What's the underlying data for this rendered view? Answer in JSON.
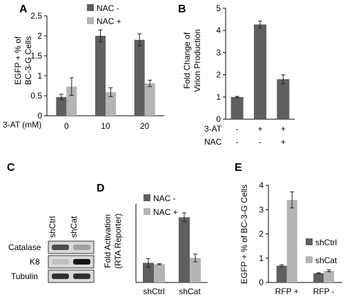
{
  "panels": {
    "A": {
      "label": "A"
    },
    "B": {
      "label": "B"
    },
    "C": {
      "label": "C"
    },
    "D": {
      "label": "D"
    },
    "E": {
      "label": "E"
    }
  },
  "colors": {
    "dark": "#5f5f5f",
    "light": "#b4b4b4",
    "axis": "#000000"
  },
  "chart_data": [
    {
      "id": "A",
      "type": "bar",
      "ylabel_lines": [
        "EGFP + % of",
        "BC-3-G Cells"
      ],
      "xlabel": "3-AT (mM)",
      "categories": [
        "0",
        "10",
        "20"
      ],
      "ylim": [
        0,
        2.5
      ],
      "yticks": [
        "0",
        "0.5",
        "1",
        "1.5",
        "2",
        "2.5"
      ],
      "legend_position": "top-right",
      "series": [
        {
          "name": "NAC -",
          "color": "#5f5f5f",
          "values": [
            0.47,
            2.0,
            1.9
          ],
          "errors": [
            0.07,
            0.15,
            0.15
          ]
        },
        {
          "name": "NAC +",
          "color": "#b4b4b4",
          "values": [
            0.73,
            0.59,
            0.81
          ],
          "errors": [
            0.22,
            0.11,
            0.08
          ]
        }
      ]
    },
    {
      "id": "B",
      "type": "bar",
      "ylabel_lines": [
        "Fold Change of",
        "Virion Production"
      ],
      "ylim": [
        0,
        5
      ],
      "yticks": [
        "0",
        "1",
        "2",
        "3",
        "4",
        "5"
      ],
      "row_labels": [
        "3-AT",
        "NAC"
      ],
      "condition_rows": [
        [
          "-",
          "+",
          "+"
        ],
        [
          "-",
          "-",
          "+"
        ]
      ],
      "series": [
        {
          "color": "#5f5f5f",
          "values": [
            1.0,
            4.27,
            1.8
          ],
          "errors": [
            0.03,
            0.15,
            0.2
          ]
        }
      ]
    },
    {
      "id": "D",
      "type": "bar",
      "ylabel_lines": [
        "Fold Activation",
        "(RTA Reporter)"
      ],
      "categories": [
        "shCtrl",
        "shCat"
      ],
      "ylim": [
        0,
        4
      ],
      "legend_position": "top",
      "series": [
        {
          "name": "NAC -",
          "color": "#5f5f5f",
          "values": [
            1.0,
            3.32
          ],
          "errors": [
            0.22,
            0.22
          ]
        },
        {
          "name": "NAC +",
          "color": "#b4b4b4",
          "values": [
            0.93,
            1.25
          ],
          "errors": [
            0.03,
            0.2
          ]
        }
      ]
    },
    {
      "id": "E",
      "type": "bar",
      "ylabel_lines": [
        "EGFP + % of BC-3-G Cells"
      ],
      "categories": [
        "RFP +",
        "RFP -"
      ],
      "ylim": [
        0,
        4
      ],
      "yticks": [
        "0",
        "1",
        "2",
        "3",
        "4"
      ],
      "legend_position": "right",
      "series": [
        {
          "name": "shCtrl",
          "color": "#5f5f5f",
          "values": [
            0.69,
            0.38
          ],
          "errors": [
            0.04,
            0.02
          ]
        },
        {
          "name": "shCat",
          "color": "#b4b4b4",
          "values": [
            3.4,
            0.48
          ],
          "errors": [
            0.33,
            0.04
          ]
        }
      ]
    }
  ],
  "blot": {
    "lanes": [
      "shCtrl",
      "shCat"
    ],
    "rows": [
      {
        "name": "Catalase",
        "bands": [
          0.7,
          0.25
        ]
      },
      {
        "name": "K8",
        "bands": [
          0.1,
          1.0
        ]
      },
      {
        "name": "Tubulin",
        "bands": [
          0.85,
          0.85
        ]
      }
    ]
  }
}
